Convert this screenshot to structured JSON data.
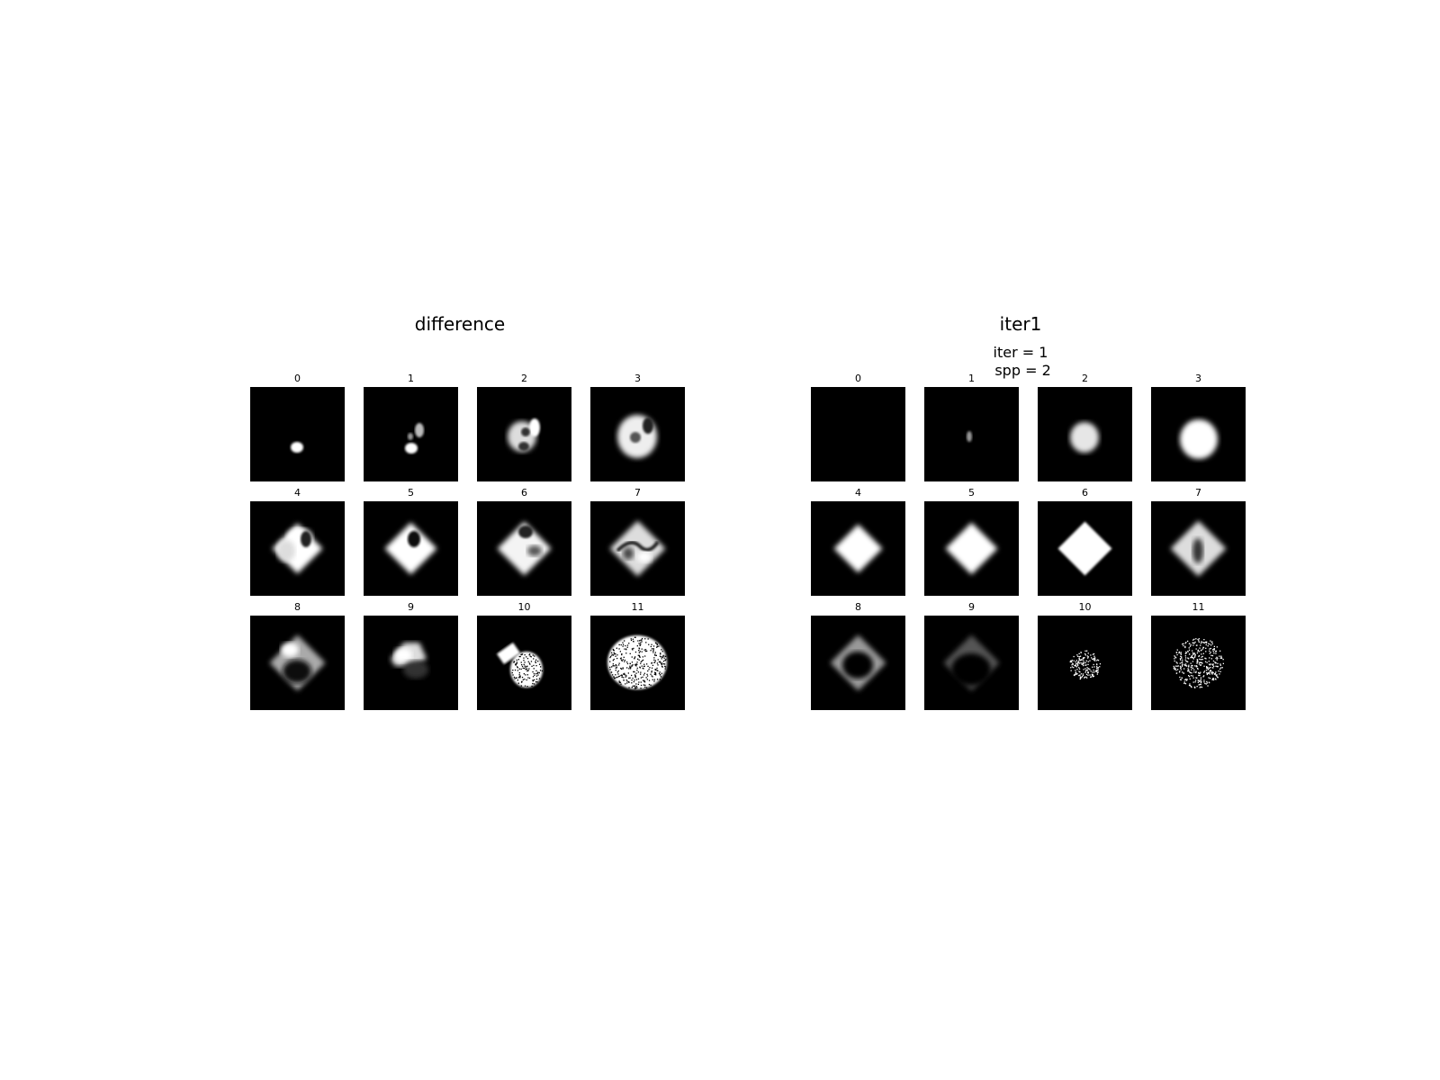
{
  "left_panel": {
    "title": "difference",
    "tile_labels": [
      "0",
      "1",
      "2",
      "3",
      "4",
      "5",
      "6",
      "7",
      "8",
      "9",
      "10",
      "11"
    ]
  },
  "right_panel": {
    "title": "iter1",
    "suptitle_line1": "iter = 1",
    "suptitle_line2": " spp = 2",
    "tile_labels": [
      "0",
      "1",
      "2",
      "3",
      "4",
      "5",
      "6",
      "7",
      "8",
      "9",
      "10",
      "11"
    ]
  }
}
